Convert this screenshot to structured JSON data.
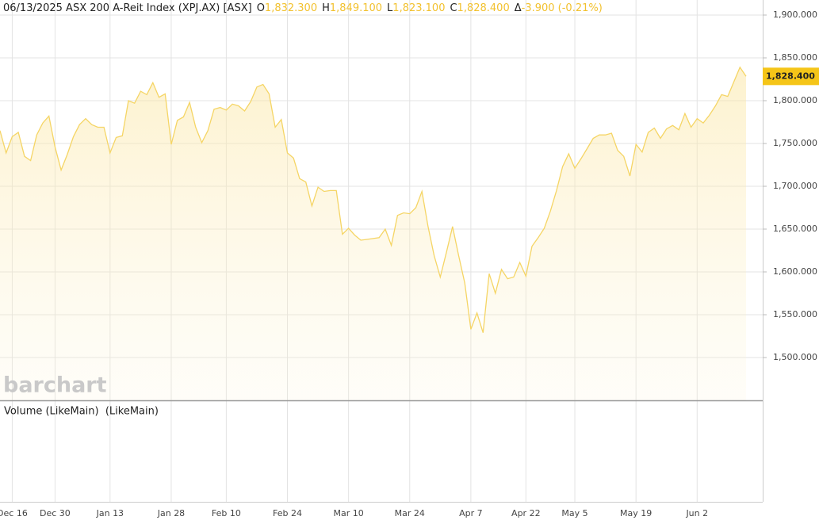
{
  "chart_data": {
    "type": "area-line",
    "title": "06/13/2025 ASX 200 A-Reit Index (XPJ.AX) [ASX]",
    "quote": [
      {
        "name": "O",
        "value": 1832.3,
        "label": "1,832.300"
      },
      {
        "name": "H",
        "value": 1849.1,
        "label": "1,849.100"
      },
      {
        "name": "L",
        "value": 1823.1,
        "label": "1,823.100"
      },
      {
        "name": "C",
        "value": 1828.4,
        "label": "1,828.400"
      },
      {
        "name": "Δ",
        "value": -3.9,
        "label": "-3.900 (-0.21%)"
      }
    ],
    "last_price": {
      "value": 1828.4,
      "label": "1,828.400"
    },
    "watermark": "barchart",
    "volume_label": "Volume (LikeMain)  (LikeMain)",
    "color": "#f5d565",
    "grid": true,
    "ylim": [
      1450,
      1917.6
    ],
    "yticks": [
      {
        "value": 1500,
        "label": "1,500.000"
      },
      {
        "value": 1550,
        "label": "1,550.000"
      },
      {
        "value": 1600,
        "label": "1,600.000"
      },
      {
        "value": 1650,
        "label": "1,650.000"
      },
      {
        "value": 1700,
        "label": "1,700.000"
      },
      {
        "value": 1750,
        "label": "1,750.000"
      },
      {
        "value": 1800,
        "label": "1,800.000"
      },
      {
        "value": 1850,
        "label": "1,850.000"
      },
      {
        "value": 1900,
        "label": "1,900.000"
      }
    ],
    "categories": [
      null,
      null,
      "Dec 16",
      null,
      null,
      null,
      null,
      null,
      null,
      "Dec 30",
      null,
      null,
      null,
      null,
      null,
      null,
      null,
      null,
      "Jan 13",
      null,
      null,
      null,
      null,
      null,
      null,
      null,
      null,
      null,
      "Jan 28",
      null,
      null,
      null,
      null,
      null,
      null,
      null,
      null,
      "Feb 10",
      null,
      null,
      null,
      null,
      null,
      null,
      null,
      null,
      null,
      "Feb 24",
      null,
      null,
      null,
      null,
      null,
      null,
      null,
      null,
      null,
      "Mar 10",
      null,
      null,
      null,
      null,
      null,
      null,
      null,
      null,
      null,
      "Mar 24",
      null,
      null,
      null,
      null,
      null,
      null,
      null,
      null,
      null,
      "Apr 7",
      null,
      null,
      null,
      null,
      null,
      null,
      null,
      null,
      "Apr 22",
      null,
      null,
      null,
      null,
      null,
      null,
      null,
      "May 5",
      null,
      null,
      null,
      null,
      null,
      null,
      null,
      null,
      null,
      "May 19",
      null,
      null,
      null,
      null,
      null,
      null,
      null,
      null,
      null,
      "Jun 2",
      null,
      null,
      null,
      null,
      null,
      null,
      null,
      null
    ],
    "values": [
      1765,
      1739,
      1758,
      1763,
      1735,
      1730,
      1760,
      1774,
      1782,
      1746,
      1719,
      1737,
      1758,
      1772,
      1779,
      1772,
      1769,
      1769,
      1739,
      1757,
      1759,
      1800,
      1797,
      1811,
      1807,
      1821,
      1804,
      1808,
      1749,
      1777,
      1781,
      1798,
      1769,
      1751,
      1765,
      1790,
      1792,
      1789,
      1796,
      1794,
      1788,
      1799,
      1816,
      1819,
      1808,
      1769,
      1778,
      1739,
      1733,
      1709,
      1705,
      1677,
      1699,
      1694,
      1695,
      1695,
      1644,
      1651,
      1643,
      1637,
      1638,
      1639,
      1640,
      1650,
      1631,
      1666,
      1669,
      1668,
      1675,
      1694,
      1653,
      1619,
      1594,
      1623,
      1653,
      1619,
      1587,
      1533,
      1552,
      1529,
      1598,
      1575,
      1603,
      1592,
      1594,
      1611,
      1595,
      1630,
      1640,
      1651,
      1671,
      1695,
      1723,
      1738,
      1721,
      1732,
      1744,
      1756,
      1760,
      1760,
      1762,
      1742,
      1735,
      1712,
      1749,
      1740,
      1763,
      1768,
      1756,
      1767,
      1771,
      1766,
      1785,
      1769,
      1779,
      1774,
      1783,
      1794,
      1807,
      1805,
      1822,
      1839,
      1828.4
    ]
  }
}
